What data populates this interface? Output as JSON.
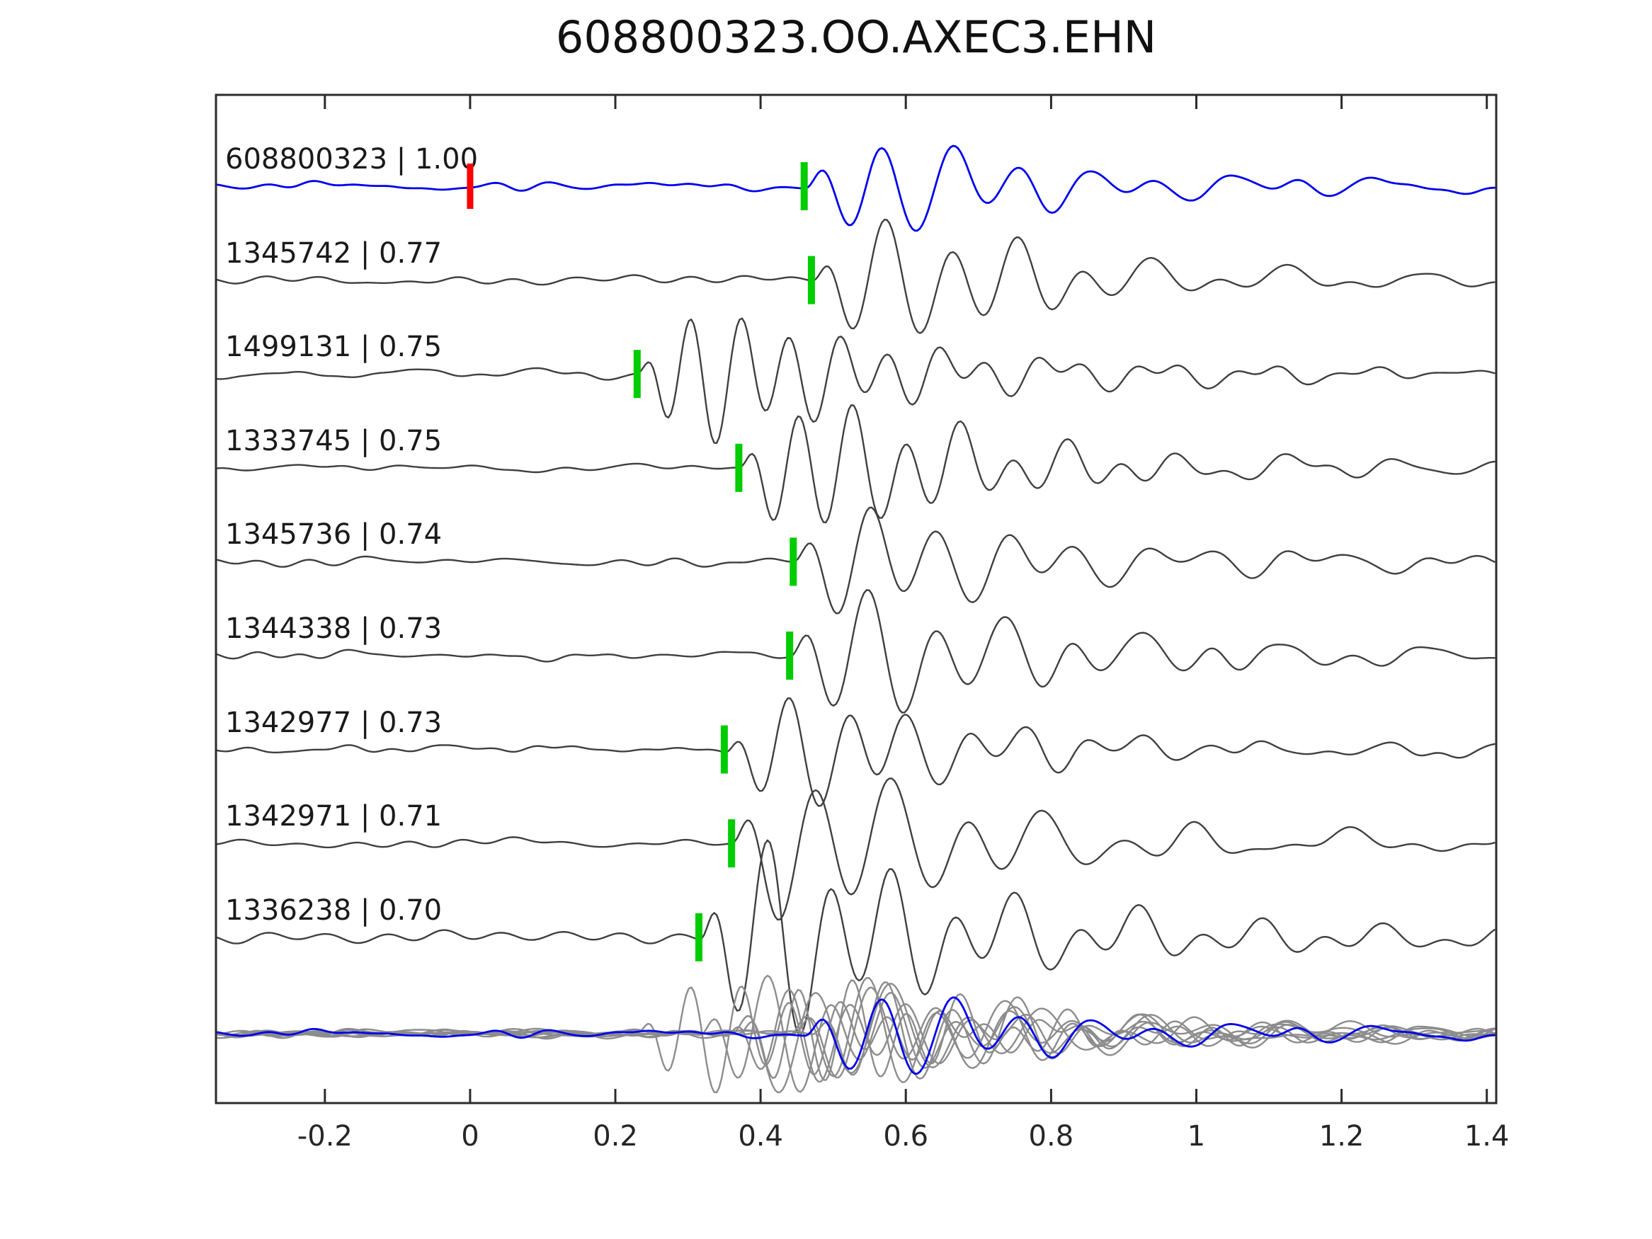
{
  "chart_data": {
    "type": "line",
    "title": "608800323.OO.AXEC3.EHN",
    "xlabel": "",
    "ylabel": "",
    "xlim": [
      -0.35,
      1.413
    ],
    "x_ticks": [
      -0.2,
      0,
      0.2,
      0.4,
      0.6,
      0.8,
      1,
      1.2,
      1.4
    ],
    "x_tick_labels": [
      "-0.2",
      "0",
      "0.2",
      "0.4",
      "0.6",
      "0.8",
      "1",
      "1.2",
      "1.4"
    ],
    "grid": false,
    "legend": "none",
    "tick_direction": "in",
    "colors": {
      "reference": "#0000ee",
      "match": "#3f3f3f",
      "overlay_gray": "#8c8c8c",
      "pick_marker": "#00cc00",
      "origin_marker": "#ff0000",
      "axis": "#2b2b2b",
      "text": "#1a1a1a",
      "background": "#ffffff"
    },
    "traces": [
      {
        "label": "608800323",
        "correlation": "1.00",
        "display": "608800323 | 1.00",
        "role": "reference",
        "color": "#0000ee",
        "pick_time": 0.46,
        "origin_marker_x": 0.0,
        "model": {
          "seed": 11,
          "period": 0.095,
          "amplitude": 64
        }
      },
      {
        "label": "1345742",
        "correlation": "0.77",
        "display": "1345742 | 0.77",
        "role": "match",
        "color": "#3f3f3f",
        "pick_time": 0.47,
        "model": {
          "seed": 23,
          "period": 0.092,
          "amplitude": 78
        }
      },
      {
        "label": "1499131",
        "correlation": "0.75",
        "display": "1499131 | 0.75",
        "role": "match",
        "color": "#3f3f3f",
        "pick_time": 0.23,
        "model": {
          "seed": 37,
          "period": 0.068,
          "amplitude": 85
        }
      },
      {
        "label": "1333745",
        "correlation": "0.75",
        "display": "1333745 | 0.75",
        "role": "match",
        "color": "#3f3f3f",
        "pick_time": 0.37,
        "model": {
          "seed": 41,
          "period": 0.074,
          "amplitude": 88
        }
      },
      {
        "label": "1345736",
        "correlation": "0.74",
        "display": "1345736 | 0.74",
        "role": "match",
        "color": "#3f3f3f",
        "pick_time": 0.445,
        "model": {
          "seed": 53,
          "period": 0.095,
          "amplitude": 72
        }
      },
      {
        "label": "1344338",
        "correlation": "0.73",
        "display": "1344338 | 0.73",
        "role": "match",
        "color": "#3f3f3f",
        "pick_time": 0.44,
        "model": {
          "seed": 67,
          "period": 0.095,
          "amplitude": 85
        }
      },
      {
        "label": "1342977",
        "correlation": "0.73",
        "display": "1342977 | 0.73",
        "role": "match",
        "color": "#3f3f3f",
        "pick_time": 0.35,
        "model": {
          "seed": 79,
          "period": 0.082,
          "amplitude": 72
        }
      },
      {
        "label": "1342971",
        "correlation": "0.71",
        "display": "1342971 | 0.71",
        "role": "match",
        "color": "#3f3f3f",
        "pick_time": 0.36,
        "model": {
          "seed": 83,
          "period": 0.105,
          "amplitude": 105
        }
      },
      {
        "label": "1336238",
        "correlation": "0.70",
        "display": "1336238 | 0.70",
        "role": "match",
        "color": "#3f3f3f",
        "pick_time": 0.315,
        "model": {
          "seed": 97,
          "period": 0.085,
          "amplitude": 135
        }
      }
    ],
    "overlay": {
      "description": "all traces superimposed at original times, matches in gray with reference in blue on top",
      "gray_color": "#8c8c8c",
      "reference_color": "#0000ee"
    }
  }
}
